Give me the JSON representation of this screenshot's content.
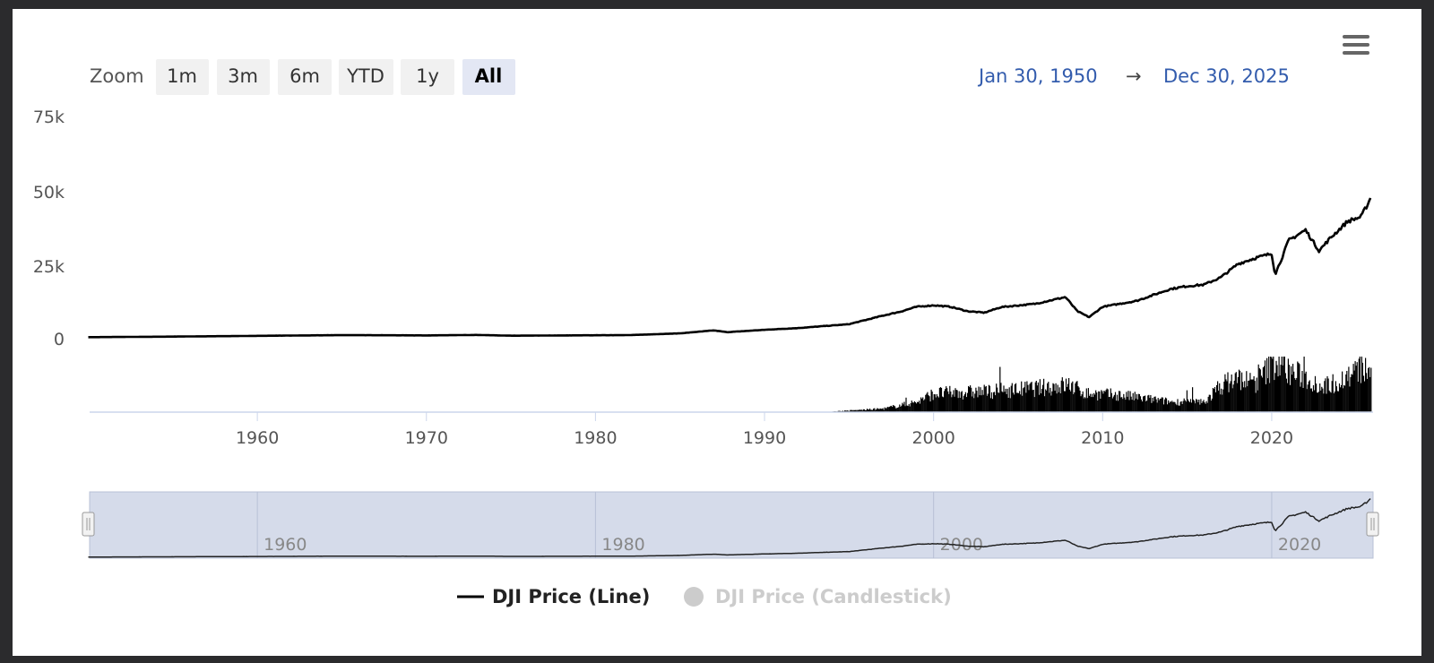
{
  "zoom": {
    "label": "Zoom",
    "buttons": [
      {
        "label": "1m",
        "active": false
      },
      {
        "label": "3m",
        "active": false
      },
      {
        "label": "6m",
        "active": false
      },
      {
        "label": "YTD",
        "active": false
      },
      {
        "label": "1y",
        "active": false
      },
      {
        "label": "All",
        "active": true
      }
    ]
  },
  "range": {
    "from": "Jan 30, 1950",
    "arrow": "→",
    "to": "Dec 30, 2025"
  },
  "menu_icon": "hamburger-menu-icon",
  "colors": {
    "line": "#000000",
    "volume": "#000000",
    "range_date": "#335cad",
    "navigator_mask": "#d5dbea",
    "legend_hidden": "#cccccc"
  },
  "chart_data": {
    "type": "line",
    "title": "",
    "x_axis": {
      "type": "datetime",
      "min": "1950-01-30",
      "max": "2025-12-30",
      "tick_labels": [
        "1960",
        "1970",
        "1980",
        "1990",
        "2000",
        "2010",
        "2020"
      ]
    },
    "y_axis": {
      "min": 0,
      "max": 75000,
      "tick_labels": [
        "75k",
        "50k",
        "25k",
        "0"
      ],
      "grid": false
    },
    "series": [
      {
        "name": "DJI Price (Line)",
        "type": "line",
        "visible": true,
        "x": [
          1950,
          1955,
          1960,
          1965,
          1970,
          1973,
          1975,
          1980,
          1982,
          1985,
          1987,
          1987.8,
          1990,
          1992,
          1995,
          1997,
          1998,
          1999,
          2000,
          2001,
          2002,
          2003,
          2004,
          2006,
          2007.8,
          2008.5,
          2009.2,
          2010,
          2012,
          2014,
          2015,
          2016,
          2017,
          2018,
          2019,
          2020.0,
          2020.2,
          2020.6,
          2021,
          2022,
          2022.8,
          2023.5,
          2024.5,
          2025.3,
          2025.9
        ],
        "values": [
          200,
          400,
          650,
          900,
          800,
          950,
          700,
          850,
          900,
          1500,
          2500,
          1900,
          2700,
          3300,
          4600,
          7500,
          8800,
          10500,
          11000,
          10500,
          9000,
          8500,
          10400,
          11500,
          13800,
          9000,
          7000,
          10500,
          12500,
          16500,
          17500,
          18000,
          20500,
          25000,
          27000,
          28500,
          21500,
          27000,
          33000,
          36500,
          29500,
          34000,
          39500,
          41000,
          48000
        ]
      },
      {
        "name": "DJI Price (Candlestick)",
        "type": "candlestick",
        "visible": false
      }
    ],
    "volume": {
      "type": "column",
      "start_year": 1994,
      "note_units": "relative",
      "x": [
        1994,
        1997,
        1999,
        2000,
        2003,
        2006,
        2008,
        2009,
        2011,
        2014,
        2016,
        2017,
        2018,
        2019,
        2020.2,
        2021,
        2022,
        2023,
        2024,
        2025.3,
        2025.9
      ],
      "values": [
        0.02,
        0.1,
        0.3,
        0.55,
        0.6,
        0.7,
        0.8,
        0.55,
        0.5,
        0.3,
        0.3,
        0.8,
        1.0,
        0.85,
        1.5,
        1.2,
        1.0,
        0.75,
        0.9,
        1.3,
        1.1
      ]
    },
    "legend": {
      "position": "bottom-center",
      "items": [
        {
          "label": "DJI Price (Line)",
          "visible": true
        },
        {
          "label": "DJI Price (Candlestick)",
          "visible": false
        }
      ]
    },
    "navigator": {
      "tick_labels": [
        "1960",
        "1980",
        "2000",
        "2020"
      ]
    }
  }
}
